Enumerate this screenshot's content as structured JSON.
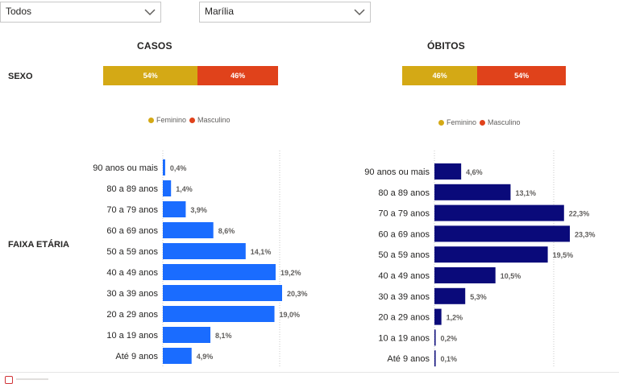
{
  "filters": {
    "left": {
      "value": "Todos"
    },
    "right": {
      "value": "Marília"
    }
  },
  "headers": {
    "casos": "CASOS",
    "obitos": "ÓBITOS"
  },
  "row_labels": {
    "sexo": "SEXO",
    "faixa": "FAIXA ETÁRIA"
  },
  "colors": {
    "feminino": "#d4a915",
    "masculino": "#e0421b",
    "casos_bar": "#1a6cff",
    "obitos_bar": "#0a0a7a"
  },
  "sexo": {
    "casos": {
      "feminino": 54,
      "masculino": 46,
      "feminino_label": "54%",
      "masculino_label": "46%"
    },
    "obitos": {
      "feminino": 46,
      "masculino": 54,
      "feminino_label": "46%",
      "masculino_label": "54%"
    },
    "legend": {
      "feminino": "Feminino",
      "masculino": "Masculino"
    }
  },
  "chart_data": [
    {
      "type": "bar",
      "orientation": "horizontal",
      "categories": [
        "90 anos ou mais",
        "80 a 89 anos",
        "70 a 79 anos",
        "60 a 69 anos",
        "50 a 59 anos",
        "40 a 49 anos",
        "30 a 39 anos",
        "20 a 29 anos",
        "10 a 19 anos",
        "Até 9 anos"
      ],
      "values": [
        0.4,
        1.4,
        3.9,
        8.6,
        14.1,
        19.2,
        20.3,
        19.0,
        8.1,
        4.9
      ],
      "labels": [
        "0,4%",
        "1,4%",
        "3,9%",
        "8,6%",
        "14,1%",
        "19,2%",
        "20,3%",
        "19,0%",
        "8,1%",
        "4,9%"
      ],
      "xlim": [
        0,
        20.3
      ],
      "title": "CASOS"
    },
    {
      "type": "bar",
      "orientation": "horizontal",
      "categories": [
        "90 anos ou mais",
        "80 a 89 anos",
        "70 a 79 anos",
        "60 a 69 anos",
        "50 a 59 anos",
        "40 a 49 anos",
        "30 a 39 anos",
        "20 a 29 anos",
        "10 a 19 anos",
        "Até 9 anos"
      ],
      "values": [
        4.6,
        13.1,
        22.3,
        23.3,
        19.5,
        10.5,
        5.3,
        1.2,
        0.2,
        0.1
      ],
      "labels": [
        "4,6%",
        "13,1%",
        "22,3%",
        "23,3%",
        "19,5%",
        "10,5%",
        "5,3%",
        "1,2%",
        "0,2%",
        "0,1%"
      ],
      "xlim": [
        0,
        23.3
      ],
      "title": "ÓBITOS"
    }
  ]
}
